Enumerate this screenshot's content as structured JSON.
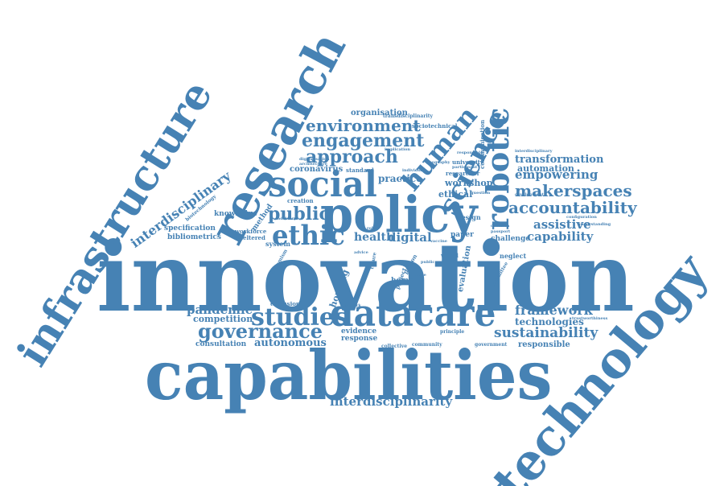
{
  "cloud": {
    "color": "#4682b4",
    "background": "#ffffff",
    "words": [
      {
        "id": "w-innovation",
        "text": "innovation"
      },
      {
        "id": "w-capabilities",
        "text": "capabilities"
      },
      {
        "id": "w-technology",
        "text": "technology"
      },
      {
        "id": "w-infrastructure",
        "text": "infrastructure"
      },
      {
        "id": "w-research",
        "text": "research"
      },
      {
        "id": "w-policy",
        "text": "policy"
      },
      {
        "id": "w-social",
        "text": "social"
      },
      {
        "id": "w-datacare",
        "text": "datacare"
      },
      {
        "id": "w-robotic",
        "text": "robotic"
      },
      {
        "id": "w-science",
        "text": "science"
      },
      {
        "id": "w-human",
        "text": "human"
      },
      {
        "id": "w-ethic",
        "text": "ethic"
      },
      {
        "id": "w-public",
        "text": "public"
      },
      {
        "id": "w-studies",
        "text": "studies"
      },
      {
        "id": "w-governance",
        "text": "governance"
      },
      {
        "id": "w-environment",
        "text": "environment"
      },
      {
        "id": "w-engagement",
        "text": "engagement"
      },
      {
        "id": "w-approach",
        "text": "approach"
      },
      {
        "id": "w-accountability",
        "text": "accountability"
      },
      {
        "id": "w-makerspaces",
        "text": "makerspaces"
      },
      {
        "id": "w-empowering",
        "text": "empowering"
      },
      {
        "id": "w-transformation",
        "text": "transformation"
      },
      {
        "id": "w-automation",
        "text": "automation"
      },
      {
        "id": "w-assistive",
        "text": "assistive"
      },
      {
        "id": "w-capability",
        "text": "capability"
      },
      {
        "id": "w-framework",
        "text": "framework"
      },
      {
        "id": "w-technologies",
        "text": "technologies"
      },
      {
        "id": "w-sustainability",
        "text": "sustainability"
      },
      {
        "id": "w-responsible",
        "text": "responsible"
      },
      {
        "id": "w-interdisciplinarity",
        "text": "interdisciplinarity"
      },
      {
        "id": "w-interdisciplinary",
        "text": "interdisciplinary"
      },
      {
        "id": "w-autonomous",
        "text": "autonomous"
      },
      {
        "id": "w-pandemic",
        "text": "pandemic"
      },
      {
        "id": "w-competition",
        "text": "competition"
      },
      {
        "id": "w-consultation",
        "text": "consultation"
      },
      {
        "id": "w-digital",
        "text": "digital"
      },
      {
        "id": "w-health",
        "text": "health"
      },
      {
        "id": "w-workshop",
        "text": "workshop"
      },
      {
        "id": "w-ethical",
        "text": "ethical"
      },
      {
        "id": "w-practice",
        "text": "practice"
      },
      {
        "id": "w-organisation",
        "text": "organisation"
      },
      {
        "id": "w-coronavirus",
        "text": "coronavirus"
      },
      {
        "id": "w-knowledge",
        "text": "knowledge"
      },
      {
        "id": "w-specification",
        "text": "specification"
      },
      {
        "id": "w-bibliometrics",
        "text": "bibliometrics"
      },
      {
        "id": "w-workforce",
        "text": "workforce"
      },
      {
        "id": "w-sheltered",
        "text": "sheltered"
      },
      {
        "id": "w-evidence",
        "text": "evidence"
      },
      {
        "id": "w-response",
        "text": "response"
      },
      {
        "id": "w-community",
        "text": "community"
      },
      {
        "id": "w-government",
        "text": "government"
      },
      {
        "id": "w-home",
        "text": "home"
      },
      {
        "id": "w-housing",
        "text": "housing"
      },
      {
        "id": "w-evaluation",
        "text": "evaluation"
      },
      {
        "id": "w-challenge",
        "text": "challenge"
      },
      {
        "id": "w-design",
        "text": "design"
      },
      {
        "id": "w-paper",
        "text": "paper"
      },
      {
        "id": "w-neglect",
        "text": "neglect"
      },
      {
        "id": "w-exclusion",
        "text": "exclusion"
      },
      {
        "id": "w-system",
        "text": "system"
      },
      {
        "id": "w-creation",
        "text": "creation"
      },
      {
        "id": "w-standard",
        "text": "standard"
      },
      {
        "id": "w-researcher",
        "text": "researcher"
      },
      {
        "id": "w-university",
        "text": "university"
      },
      {
        "id": "w-sociotechnical",
        "text": "sociotechnical"
      },
      {
        "id": "w-transdisciplinarity",
        "text": "transdisciplinarity"
      },
      {
        "id": "w-communication",
        "text": "communication"
      },
      {
        "id": "w-biotechnology",
        "text": "biotechnology"
      },
      {
        "id": "w-method",
        "text": "method"
      },
      {
        "id": "w-development",
        "text": "development"
      },
      {
        "id": "w-configuration",
        "text": "configuration"
      },
      {
        "id": "w-understanding",
        "text": "understanding"
      },
      {
        "id": "w-trustworthiness",
        "text": "trustworthiness"
      },
      {
        "id": "w-collective",
        "text": "collective"
      },
      {
        "id": "w-principle",
        "text": "principle"
      },
      {
        "id": "w-world",
        "text": "world"
      },
      {
        "id": "w-project",
        "text": "project"
      },
      {
        "id": "w-future",
        "text": "future"
      },
      {
        "id": "w-person",
        "text": "person"
      },
      {
        "id": "w-committee",
        "text": "committee"
      },
      {
        "id": "w-vaccine",
        "text": "vaccine"
      },
      {
        "id": "w-robot",
        "text": "robot"
      },
      {
        "id": "w-advice",
        "text": "advice"
      },
      {
        "id": "w-decision",
        "text": "decision"
      },
      {
        "id": "w-passport",
        "text": "passport"
      },
      {
        "id": "w-question",
        "text": "question"
      },
      {
        "id": "w-interdisciplinary-2",
        "text": "interdisciplinary"
      },
      {
        "id": "w-digitalisation",
        "text": "digitalisation"
      },
      {
        "id": "w-architecture",
        "text": "architecture"
      },
      {
        "id": "w-implication",
        "text": "implication"
      },
      {
        "id": "w-individual",
        "text": "individual"
      },
      {
        "id": "w-participant",
        "text": "participant"
      },
      {
        "id": "w-extremism",
        "text": "extremism"
      },
      {
        "id": "w-advisory",
        "text": "advisory"
      },
      {
        "id": "w-network",
        "text": "network"
      },
      {
        "id": "w-value",
        "text": "value"
      },
      {
        "id": "w-public-2",
        "text": "public"
      },
      {
        "id": "w-geography",
        "text": "geography"
      },
      {
        "id": "w-responsible-2",
        "text": "responsible"
      }
    ]
  }
}
